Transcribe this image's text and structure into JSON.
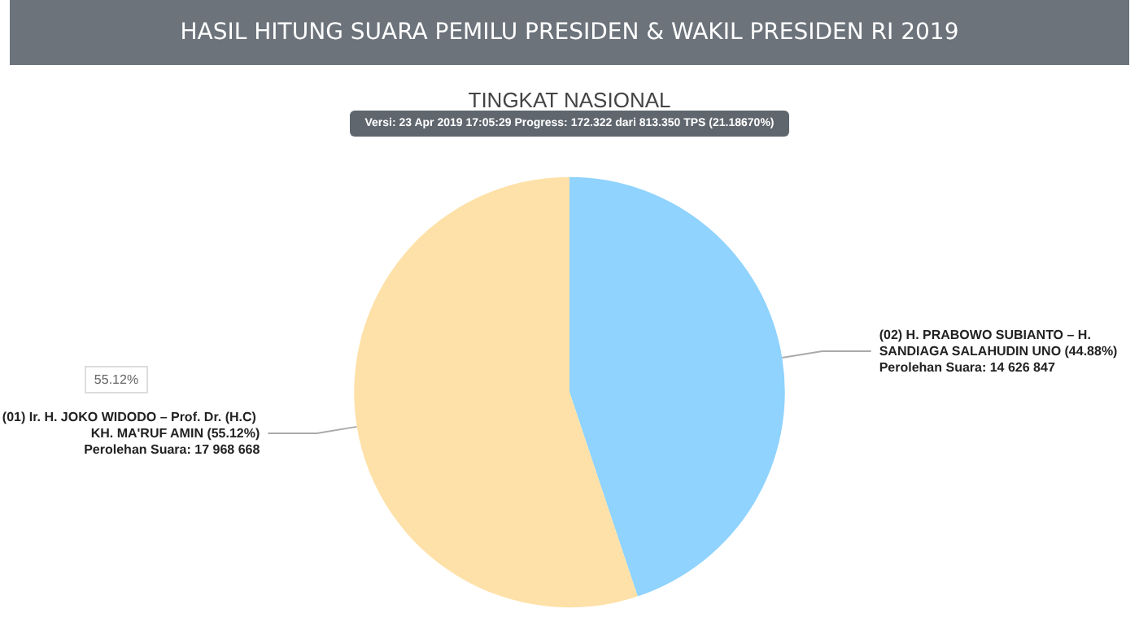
{
  "chart_data": {
    "type": "pie",
    "title": "HASIL HITUNG SUARA PEMILU PRESIDEN & WAKIL PRESIDEN RI 2019",
    "subtitle": "TINGKAT NASIONAL",
    "annotations": [
      "Versi: 23 Apr 2019 17:05:29 Progress: 172.322 dari 813.350 TPS (21.18670%)",
      "55.12%"
    ],
    "categories": [
      "(02) H. PRABOWO SUBIANTO – H. SANDIAGA SALAHUDIN UNO (44.88%)",
      "(01) Ir. H. JOKO WIDODO – Prof. Dr. (H.C) KH. MA'RUF AMIN (55.12%)"
    ],
    "values": [
      14626847,
      17968668
    ],
    "value_labels": [
      "Perolehan Suara: 14 626 847",
      "Perolehan Suara: 17 968 668"
    ],
    "colors": [
      "#8fd3fe",
      "#fee1a8"
    ],
    "legend": false
  }
}
